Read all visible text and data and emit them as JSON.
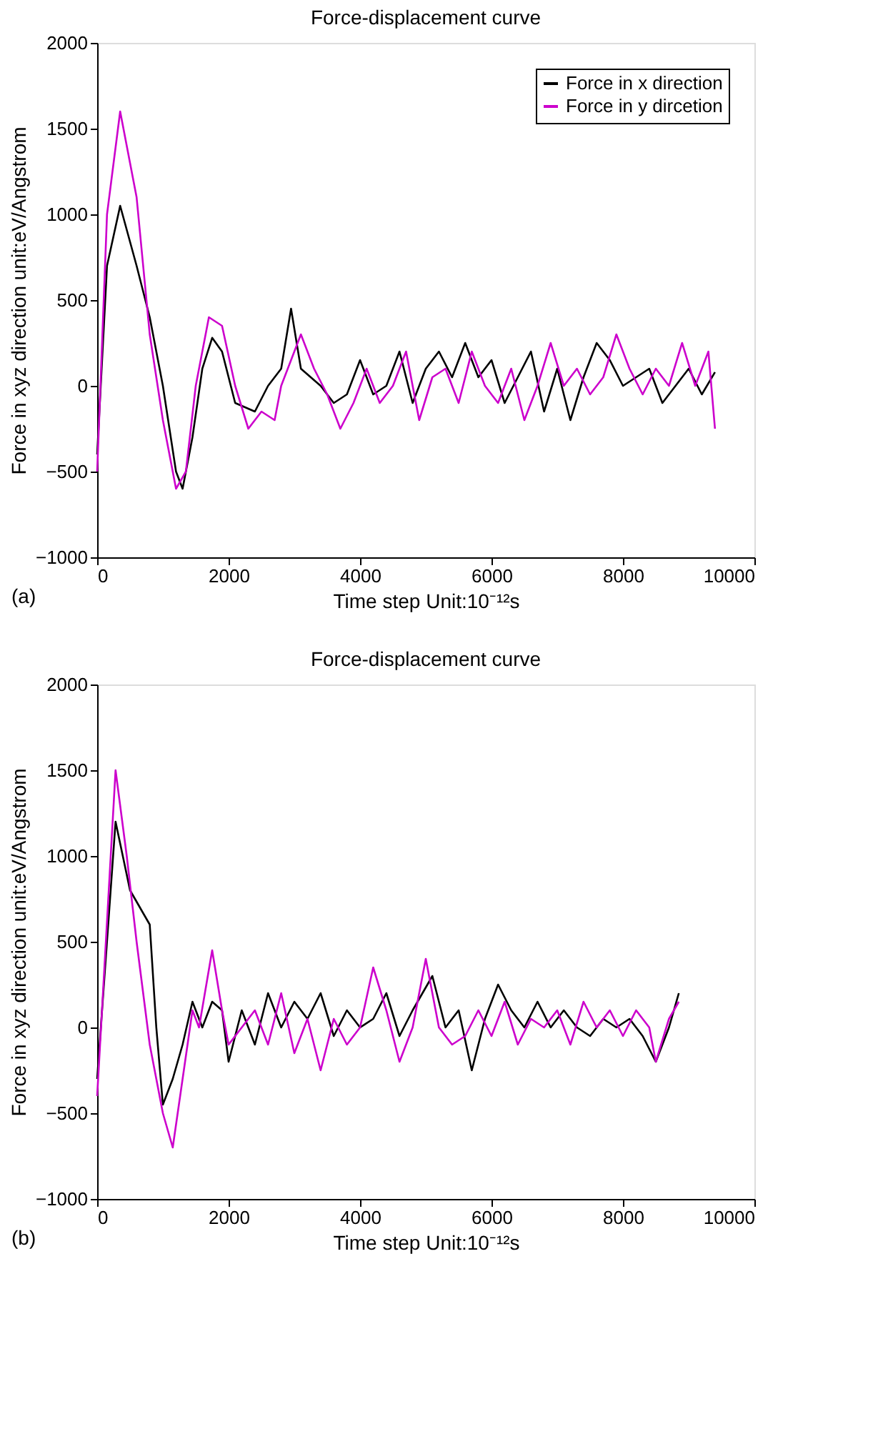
{
  "chart_data": [
    {
      "type": "line",
      "title": "Force-displacement curve",
      "xlabel": "Time step    Unit:10⁻¹²s",
      "ylabel": "Force in xyz direction    unit:eV/Angstrom",
      "annotations": [
        "(a)"
      ],
      "xlim": [
        0,
        10000
      ],
      "xticks": [
        0,
        2000,
        4000,
        6000,
        8000,
        10000
      ],
      "ylim": [
        -1000,
        2000
      ],
      "yticks": [
        -1000,
        -500,
        0,
        500,
        1000,
        1500,
        2000
      ],
      "grid": false,
      "legend": "top right",
      "line_style": "solid",
      "marker": "none",
      "series": [
        {
          "name": "Force in x direction",
          "color": "#000000",
          "x": [
            0,
            150,
            350,
            600,
            800,
            1000,
            1200,
            1300,
            1450,
            1600,
            1750,
            1900,
            2100,
            2400,
            2600,
            2800,
            2950,
            3100,
            3400,
            3600,
            3800,
            4000,
            4200,
            4400,
            4600,
            4800,
            5000,
            5200,
            5400,
            5600,
            5800,
            6000,
            6200,
            6400,
            6600,
            6800,
            7000,
            7200,
            7400,
            7600,
            7800,
            8000,
            8200,
            8400,
            8600,
            8800,
            9000,
            9200,
            9400
          ],
          "values": [
            -400,
            700,
            1050,
            700,
            400,
            0,
            -500,
            -600,
            -300,
            100,
            280,
            200,
            -100,
            -150,
            0,
            100,
            450,
            100,
            0,
            -100,
            -50,
            150,
            -50,
            0,
            200,
            -100,
            100,
            200,
            50,
            250,
            50,
            150,
            -100,
            50,
            200,
            -150,
            100,
            -200,
            50,
            250,
            150,
            0,
            50,
            100,
            -100,
            0,
            100,
            -50,
            80
          ]
        },
        {
          "name": "Force in y dircetion",
          "color": "#cc00cc",
          "x": [
            0,
            150,
            350,
            600,
            800,
            1000,
            1200,
            1350,
            1500,
            1700,
            1900,
            2100,
            2300,
            2500,
            2700,
            2800,
            3000,
            3100,
            3300,
            3500,
            3700,
            3900,
            4100,
            4300,
            4500,
            4700,
            4900,
            5100,
            5300,
            5500,
            5700,
            5900,
            6100,
            6300,
            6500,
            6700,
            6900,
            7100,
            7300,
            7500,
            7700,
            7900,
            8100,
            8300,
            8500,
            8700,
            8900,
            9100,
            9300,
            9400
          ],
          "values": [
            -500,
            1000,
            1600,
            1100,
            300,
            -200,
            -600,
            -500,
            0,
            400,
            350,
            0,
            -250,
            -150,
            -200,
            0,
            200,
            300,
            100,
            -50,
            -250,
            -100,
            100,
            -100,
            0,
            200,
            -200,
            50,
            100,
            -100,
            200,
            0,
            -100,
            100,
            -200,
            0,
            250,
            0,
            100,
            -50,
            50,
            300,
            100,
            -50,
            100,
            0,
            250,
            0,
            200,
            -250
          ]
        }
      ]
    },
    {
      "type": "line",
      "title": "Force-displacement curve",
      "xlabel": "Time step    Unit:10⁻¹²s",
      "ylabel": "Force in xyz direction    unit:eV/Angstrom",
      "annotations": [
        "(b)"
      ],
      "xlim": [
        0,
        10000
      ],
      "xticks": [
        0,
        2000,
        4000,
        6000,
        8000,
        10000
      ],
      "ylim": [
        -1000,
        2000
      ],
      "yticks": [
        -1000,
        -500,
        0,
        500,
        1000,
        1500,
        2000
      ],
      "grid": false,
      "legend": "top right",
      "line_style": "solid",
      "marker": "none",
      "series": [
        {
          "name": "Force in x direction",
          "color": "#000000",
          "x": [
            0,
            280,
            500,
            650,
            800,
            900,
            1000,
            1150,
            1300,
            1450,
            1600,
            1750,
            1900,
            2000,
            2200,
            2400,
            2600,
            2800,
            3000,
            3200,
            3400,
            3600,
            3800,
            4000,
            4200,
            4400,
            4600,
            4800,
            5100,
            5300,
            5500,
            5700,
            5900,
            6100,
            6300,
            6500,
            6700,
            6900,
            7100,
            7300,
            7500,
            7700,
            7900,
            8100,
            8300,
            8500,
            8700,
            8850
          ],
          "values": [
            -300,
            1200,
            800,
            700,
            600,
            0,
            -450,
            -300,
            -100,
            150,
            0,
            150,
            100,
            -200,
            100,
            -100,
            200,
            0,
            150,
            50,
            200,
            -50,
            100,
            0,
            50,
            200,
            -50,
            100,
            300,
            0,
            100,
            -250,
            50,
            250,
            100,
            0,
            150,
            0,
            100,
            0,
            -50,
            50,
            0,
            50,
            -50,
            -200,
            0,
            200
          ]
        },
        {
          "name": "Force in y dircetion",
          "color": "#cc00cc",
          "x": [
            0,
            280,
            450,
            600,
            800,
            900,
            1000,
            1150,
            1300,
            1450,
            1550,
            1750,
            1900,
            2000,
            2200,
            2400,
            2600,
            2800,
            3000,
            3200,
            3400,
            3600,
            3800,
            4000,
            4200,
            4400,
            4600,
            4800,
            5000,
            5200,
            5400,
            5600,
            5800,
            6000,
            6200,
            6400,
            6600,
            6800,
            7000,
            7200,
            7400,
            7600,
            7800,
            8000,
            8200,
            8400,
            8500,
            8700,
            8850
          ],
          "values": [
            -400,
            1500,
            1000,
            500,
            -100,
            -300,
            -500,
            -700,
            -300,
            100,
            0,
            450,
            100,
            -100,
            0,
            100,
            -100,
            200,
            -150,
            50,
            -250,
            50,
            -100,
            0,
            350,
            100,
            -200,
            0,
            400,
            0,
            -100,
            -50,
            100,
            -50,
            150,
            -100,
            50,
            0,
            100,
            -100,
            150,
            0,
            100,
            -50,
            100,
            0,
            -200,
            50,
            150
          ]
        }
      ]
    }
  ]
}
